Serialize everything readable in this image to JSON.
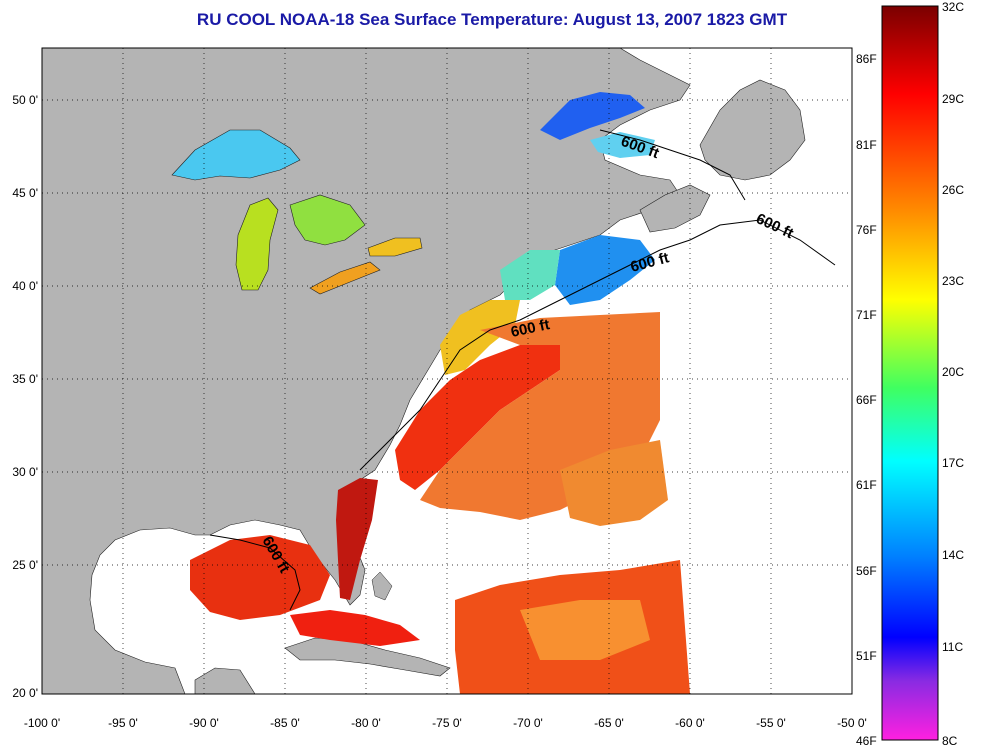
{
  "title": "RU COOL  NOAA-18  Sea Surface Temperature:  August 13, 2007 1823 GMT",
  "map": {
    "x_ticks": [
      "-100 0'",
      "-95 0'",
      "-90 0'",
      "-85 0'",
      "-80 0'",
      "-75 0'",
      "-70 0'",
      "-65 0'",
      "-60 0'",
      "-55 0'",
      "-50 0'"
    ],
    "y_ticks": [
      "50 0'",
      "45 0'",
      "40 0'",
      "35 0'",
      "30 0'",
      "25 0'",
      "20 0'"
    ],
    "contour_label": "600 ft",
    "land_color": "#b4b4b4",
    "ocean_no_data_color": "#ffffff",
    "grid": "dotted"
  },
  "colorbar": {
    "fahrenheit_labels": [
      "86F",
      "81F",
      "76F",
      "71F",
      "66F",
      "61F",
      "56F",
      "51F",
      "46F"
    ],
    "celsius_labels": [
      "32C",
      "29C",
      "26C",
      "23C",
      "20C",
      "17C",
      "14C",
      "11C",
      "8C"
    ],
    "colors": [
      "#8b0000",
      "#ff0000",
      "#ff8c00",
      "#ffff00",
      "#00ff7f",
      "#00ffff",
      "#0080ff",
      "#0000ff",
      "#8a2be2",
      "#ff00ff"
    ]
  }
}
